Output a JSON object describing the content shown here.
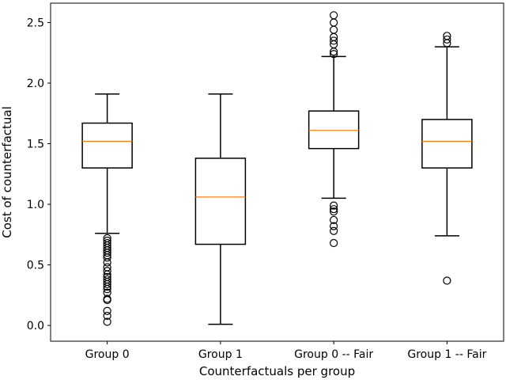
{
  "chart_data": {
    "type": "box",
    "xlabel": "Counterfactuals per group",
    "ylabel": "Cost of counterfactual",
    "ylim": [
      -0.13,
      2.66
    ],
    "yticks": [
      0.0,
      0.5,
      1.0,
      1.5,
      2.0,
      2.5
    ],
    "ytick_labels": [
      "0.0",
      "0.5",
      "1.0",
      "1.5",
      "2.0",
      "2.5"
    ],
    "grid": false,
    "categories": [
      "Group 0",
      "Group 1",
      "Group 0 -- Fair",
      "Group 1 -- Fair"
    ],
    "boxes": [
      {
        "label": "Group 0",
        "whisker_low": 0.76,
        "q1": 1.3,
        "median": 1.52,
        "q3": 1.67,
        "whisker_high": 1.91,
        "outliers": [
          0.72,
          0.7,
          0.68,
          0.66,
          0.64,
          0.62,
          0.6,
          0.58,
          0.56,
          0.52,
          0.48,
          0.45,
          0.42,
          0.4,
          0.38,
          0.36,
          0.34,
          0.32,
          0.3,
          0.27,
          0.22,
          0.21,
          0.12,
          0.08,
          0.03
        ]
      },
      {
        "label": "Group 1",
        "whisker_low": 0.01,
        "q1": 0.67,
        "median": 1.06,
        "q3": 1.38,
        "whisker_high": 1.91,
        "outliers": []
      },
      {
        "label": "Group 0 -- Fair",
        "whisker_low": 1.05,
        "q1": 1.46,
        "median": 1.61,
        "q3": 1.77,
        "whisker_high": 2.22,
        "outliers": [
          2.56,
          2.5,
          2.44,
          2.38,
          2.35,
          2.32,
          2.26,
          2.24,
          0.99,
          0.96,
          0.94,
          0.87,
          0.82,
          0.78,
          0.68
        ]
      },
      {
        "label": "Group 1 -- Fair",
        "whisker_low": 0.74,
        "q1": 1.3,
        "median": 1.52,
        "q3": 1.7,
        "whisker_high": 2.3,
        "outliers": [
          2.39,
          2.36,
          2.33,
          0.37
        ]
      }
    ],
    "colors": {
      "box": "#000000",
      "median": "#ff7f0e",
      "outlier": "#000000"
    }
  }
}
